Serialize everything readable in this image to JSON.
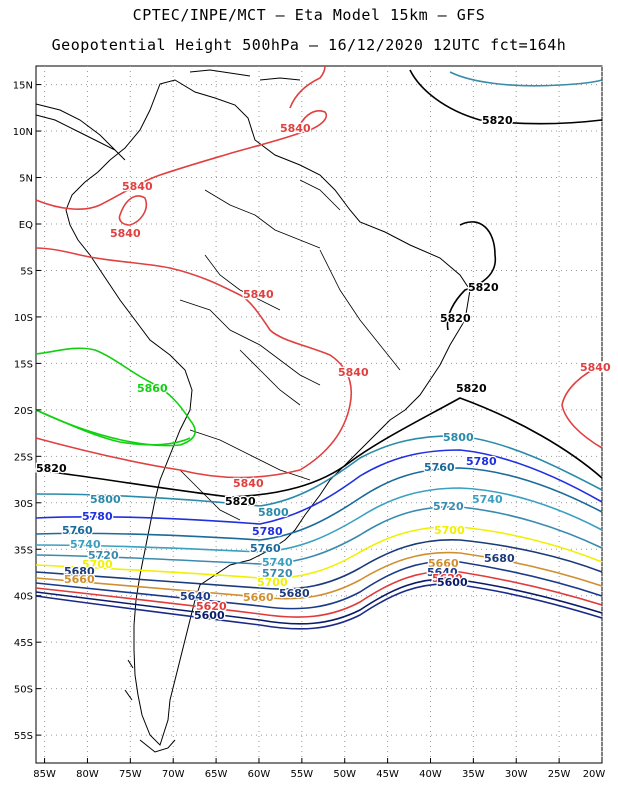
{
  "title": {
    "line1": "CPTEC/INPE/MCT –  Eta Model 15km – GFS",
    "line2": "Geopotential Height 500hPa – 16/12/2020 12UTC fct=164h"
  },
  "axes": {
    "lat_labels": [
      "15N",
      "10N",
      "5N",
      "EQ",
      "5S",
      "10S",
      "15S",
      "20S",
      "25S",
      "30S",
      "35S",
      "40S",
      "45S",
      "50S",
      "55S"
    ],
    "lon_labels": [
      "85W",
      "80W",
      "75W",
      "70W",
      "65W",
      "60W",
      "55W",
      "50W",
      "45W",
      "40W",
      "35W",
      "30W",
      "25W",
      "20W"
    ],
    "lon_range": [
      -86,
      -20
    ],
    "lat_range": [
      -58,
      17
    ],
    "grid": "dotted"
  },
  "colors": {
    "c5580": "#1a2a8a",
    "c5600": "#0a1a6a",
    "c5620": "#e03a3a",
    "c5640": "#1a3a8a",
    "c5660": "#d09030",
    "c5680": "#1a3a7a",
    "c5700": "#f0f000",
    "c5720": "#3a8ab0",
    "c5740": "#3aa0c0",
    "c5760": "#1a6a9a",
    "c5780": "#2030e0",
    "c5800": "#2a8aaa",
    "c5820": "#000000",
    "c5840": "#e04040",
    "c5860": "#10d010",
    "land": "#000000"
  },
  "contour_labels": [
    {
      "id": "l5840a",
      "text": "5840",
      "color": "c5840"
    },
    {
      "id": "l5840b",
      "text": "5840",
      "color": "c5840"
    },
    {
      "id": "l5840c",
      "text": "5840",
      "color": "c5840"
    },
    {
      "id": "l5840d",
      "text": "5840",
      "color": "c5840"
    },
    {
      "id": "l5840e",
      "text": "5840",
      "color": "c5840"
    },
    {
      "id": "l5840f",
      "text": "5840",
      "color": "c5840"
    },
    {
      "id": "l5840g",
      "text": "5840",
      "color": "c5840"
    },
    {
      "id": "l5820a",
      "text": "5820",
      "color": "c5820"
    },
    {
      "id": "l5820b",
      "text": "5820",
      "color": "c5820"
    },
    {
      "id": "l5820c",
      "text": "5820",
      "color": "c5820"
    },
    {
      "id": "l5820d",
      "text": "5820",
      "color": "c5820"
    },
    {
      "id": "l5820e",
      "text": "5820",
      "color": "c5820"
    },
    {
      "id": "l5820f",
      "text": "5820",
      "color": "c5820"
    },
    {
      "id": "l5860a",
      "text": "5860",
      "color": "c5860"
    },
    {
      "id": "l5800a",
      "text": "5800",
      "color": "c5800"
    },
    {
      "id": "l5800b",
      "text": "5800",
      "color": "c5800"
    },
    {
      "id": "l5800c",
      "text": "5800",
      "color": "c5800"
    },
    {
      "id": "l5780a",
      "text": "5780",
      "color": "c5780"
    },
    {
      "id": "l5780b",
      "text": "5780",
      "color": "c5780"
    },
    {
      "id": "l5780c",
      "text": "5780",
      "color": "c5780"
    },
    {
      "id": "l5760a",
      "text": "5760",
      "color": "c5760"
    },
    {
      "id": "l5760b",
      "text": "5760",
      "color": "c5760"
    },
    {
      "id": "l5760c",
      "text": "5760",
      "color": "c5760"
    },
    {
      "id": "l5740a",
      "text": "5740",
      "color": "c5740"
    },
    {
      "id": "l5740b",
      "text": "5740",
      "color": "c5740"
    },
    {
      "id": "l5740c",
      "text": "5740",
      "color": "c5740"
    },
    {
      "id": "l5720a",
      "text": "5720",
      "color": "c5720"
    },
    {
      "id": "l5720b",
      "text": "5720",
      "color": "c5720"
    },
    {
      "id": "l5720c",
      "text": "5720",
      "color": "c5720"
    },
    {
      "id": "l5700a",
      "text": "5700",
      "color": "c5700"
    },
    {
      "id": "l5700b",
      "text": "5700",
      "color": "c5700"
    },
    {
      "id": "l5700c",
      "text": "5700",
      "color": "c5700"
    },
    {
      "id": "l5680a",
      "text": "5680",
      "color": "c5680"
    },
    {
      "id": "l5680b",
      "text": "5680",
      "color": "c5680"
    },
    {
      "id": "l5680c",
      "text": "5680",
      "color": "c5680"
    },
    {
      "id": "l5660a",
      "text": "5660",
      "color": "c5660"
    },
    {
      "id": "l5660b",
      "text": "5660",
      "color": "c5660"
    },
    {
      "id": "l5660c",
      "text": "5660",
      "color": "c5660"
    },
    {
      "id": "l5640a",
      "text": "5640",
      "color": "c5640"
    },
    {
      "id": "l5640b",
      "text": "5640",
      "color": "c5640"
    },
    {
      "id": "l5620a",
      "text": "5620",
      "color": "c5620"
    },
    {
      "id": "l5620b",
      "text": "5620",
      "color": "c5620"
    },
    {
      "id": "l5600a",
      "text": "5600",
      "color": "c5600"
    },
    {
      "id": "l5600b",
      "text": "5600",
      "color": "c5600"
    }
  ]
}
